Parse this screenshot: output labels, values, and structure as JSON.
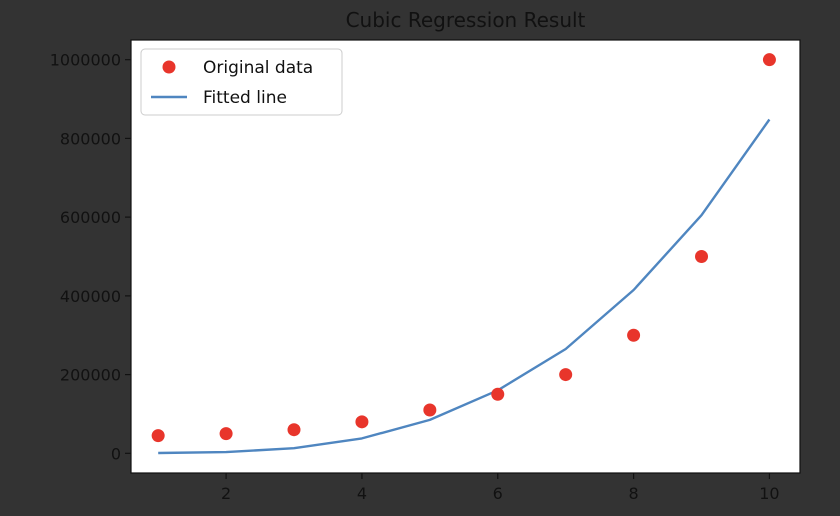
{
  "chart_data": {
    "type": "scatter",
    "title": "Cubic Regression Result",
    "xlabel": "",
    "ylabel": "",
    "xlim": [
      0.6,
      10.45
    ],
    "ylim": [
      -50000,
      1050000
    ],
    "x_ticks": [
      2,
      4,
      6,
      8,
      10
    ],
    "y_ticks": [
      0,
      200000,
      400000,
      600000,
      800000,
      1000000
    ],
    "grid": false,
    "legend_position": "top-left",
    "series": [
      {
        "name": "Original data",
        "kind": "scatter",
        "color": "#e8352b",
        "x": [
          1,
          2,
          3,
          4,
          5,
          6,
          7,
          8,
          9,
          10
        ],
        "y": [
          45000,
          50000,
          60000,
          80000,
          110000,
          150000,
          200000,
          300000,
          500000,
          1000000
        ]
      },
      {
        "name": "Fitted line",
        "kind": "line",
        "color": "#4f86c0",
        "x": [
          1,
          2,
          3,
          4,
          5,
          6,
          7,
          8,
          9,
          10
        ],
        "y": [
          850,
          3000,
          13000,
          38000,
          85000,
          160000,
          265000,
          415000,
          605000,
          848000
        ]
      }
    ]
  }
}
